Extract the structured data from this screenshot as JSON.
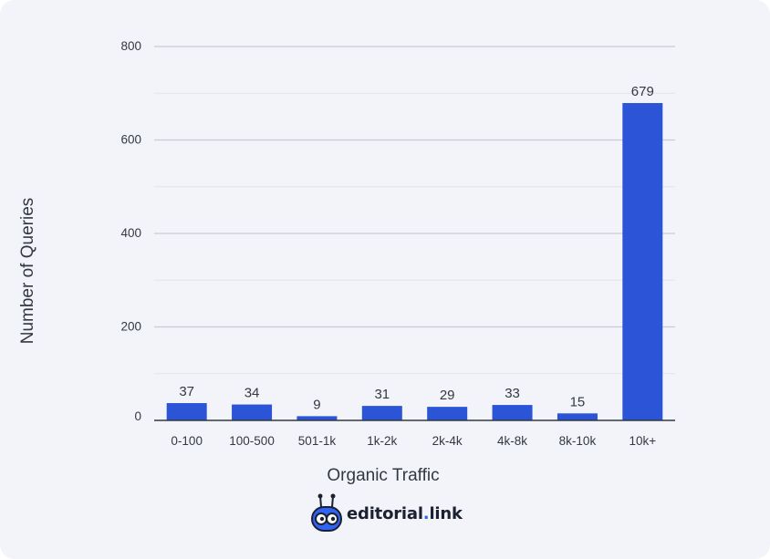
{
  "chart_data": {
    "type": "bar",
    "categories": [
      "0-100",
      "100-500",
      "501-1k",
      "1k-2k",
      "2k-4k",
      "4k-8k",
      "8k-10k",
      "10k+"
    ],
    "values": [
      37,
      34,
      9,
      31,
      29,
      33,
      15,
      679
    ],
    "data_labels": [
      "37",
      "34",
      "9",
      "31",
      "29",
      "33",
      "15",
      "679"
    ],
    "xlabel": "Organic Traffic",
    "ylabel": "Number of Queries",
    "ylim": [
      0,
      800
    ],
    "yticks": [
      "0",
      "200",
      "400",
      "600",
      "800"
    ],
    "grid": true,
    "bar_color": "#2b55d6"
  },
  "logo": {
    "name": "editorial",
    "dot": ".",
    "suffix": "link",
    "accent_color": "#2f64f5"
  }
}
